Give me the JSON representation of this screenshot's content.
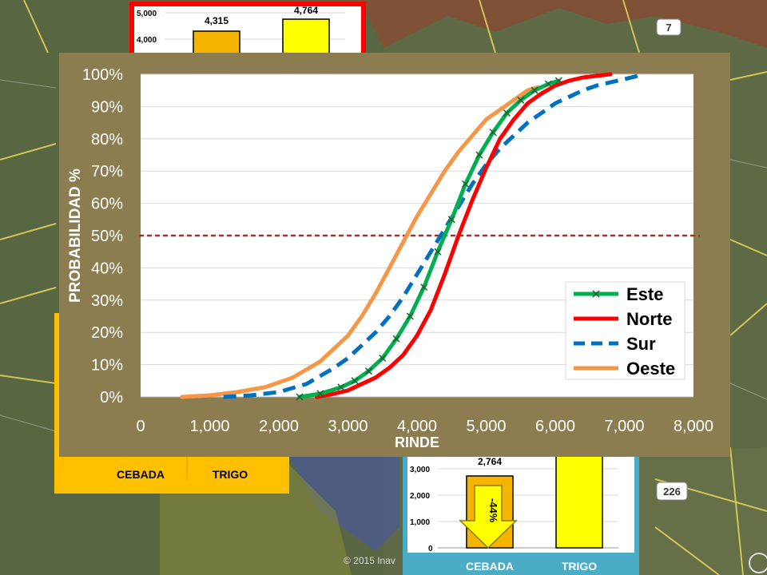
{
  "map": {
    "road_badges": [
      "7",
      "226"
    ],
    "copyright": "© 2015 Inav"
  },
  "mini_chart_top": {
    "yticks": [
      "5,000",
      "4,000"
    ],
    "values": [
      4315,
      4764
    ],
    "value_labels": [
      "4,315",
      "4,764"
    ],
    "colors": [
      "#f5b400",
      "#ffff00"
    ],
    "frame_color": "#ff0000"
  },
  "mini_chart_left": {
    "categories": [
      "CEBADA",
      "TRIGO"
    ],
    "frame_color": "#ffc000"
  },
  "mini_chart_bottom": {
    "yticks": [
      "3,000",
      "2,000",
      "1,000",
      "0"
    ],
    "categories": [
      "CEBADA",
      "TRIGO"
    ],
    "values": [
      2764,
      null
    ],
    "value_labels": [
      "2,764"
    ],
    "arrow_label": "-44%",
    "frame_color": "#4bacc6"
  },
  "chart_data": {
    "type": "line",
    "xlabel": "RINDE",
    "ylabel": "PROBABILIDAD %",
    "xlim": [
      0,
      8000
    ],
    "ylim": [
      0,
      100
    ],
    "xticks": [
      "0",
      "1,000",
      "2,000",
      "3,000",
      "4,000",
      "5,000",
      "6,000",
      "7,000",
      "8,000"
    ],
    "yticks": [
      "0%",
      "10%",
      "20%",
      "30%",
      "40%",
      "50%",
      "60%",
      "70%",
      "80%",
      "90%",
      "100%"
    ],
    "grid": true,
    "legend_position": "bottom-right",
    "reference_line_y": 50,
    "series": [
      {
        "name": "Este",
        "color": "#00b050",
        "style": "solid-markers",
        "x": [
          2300,
          2600,
          2900,
          3100,
          3300,
          3500,
          3700,
          3900,
          4100,
          4300,
          4500,
          4700,
          4900,
          5100,
          5300,
          5500,
          5700,
          5900,
          6050
        ],
        "y": [
          0,
          1,
          3,
          5,
          8,
          12,
          18,
          25,
          34,
          45,
          55,
          66,
          75,
          82,
          88,
          92,
          95,
          97,
          98
        ]
      },
      {
        "name": "Norte",
        "color": "#ff0000",
        "style": "solid",
        "x": [
          2550,
          2800,
          3000,
          3200,
          3400,
          3600,
          3800,
          4000,
          4200,
          4400,
          4600,
          4800,
          5000,
          5200,
          5400,
          5600,
          5800,
          6000,
          6200,
          6400,
          6600,
          6800
        ],
        "y": [
          0,
          1,
          2,
          4,
          6,
          9,
          13,
          19,
          27,
          38,
          50,
          61,
          71,
          80,
          86,
          91,
          94,
          96.5,
          98,
          99,
          99.5,
          100
        ]
      },
      {
        "name": "Sur",
        "color": "#0070c0",
        "style": "dashed",
        "x": [
          1200,
          1600,
          2000,
          2400,
          2800,
          3000,
          3200,
          3400,
          3600,
          3800,
          4000,
          4200,
          4400,
          4600,
          4800,
          5000,
          5200,
          5400,
          5600,
          5800,
          6000,
          6200,
          6400,
          6600,
          6800,
          7000,
          7200
        ],
        "y": [
          0,
          0.5,
          1.5,
          4,
          9,
          12,
          16,
          20,
          25,
          31,
          38,
          45,
          52,
          59,
          66,
          72,
          77,
          81,
          85,
          88,
          91,
          93,
          95,
          96.5,
          97.5,
          98.5,
          99.5
        ]
      },
      {
        "name": "Oeste",
        "color": "#f79646",
        "style": "solid",
        "x": [
          600,
          1000,
          1400,
          1800,
          2200,
          2600,
          3000,
          3200,
          3400,
          3600,
          3800,
          4000,
          4200,
          4400,
          4600,
          4800,
          5000,
          5200,
          5400,
          5600,
          5750
        ],
        "y": [
          0,
          0.5,
          1.5,
          3,
          6,
          11,
          19,
          25,
          32,
          40,
          48,
          56,
          63,
          70,
          76,
          81,
          86,
          89,
          92,
          95,
          96
        ]
      }
    ]
  }
}
